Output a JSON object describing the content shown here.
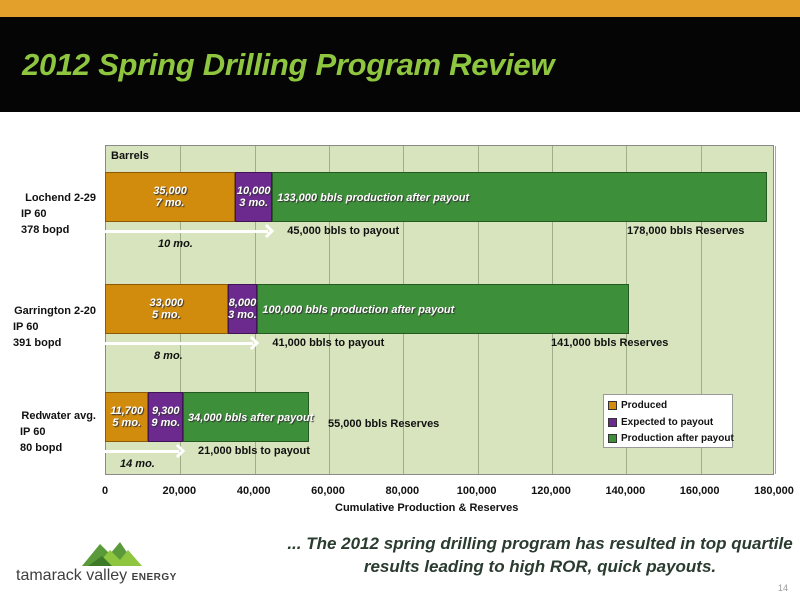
{
  "slide": {
    "title": "2012 Spring Drilling Program Review",
    "footer_text": "... The 2012 spring drilling program has resulted in top quartile results leading to high ROR, quick payouts.",
    "page_number": "14",
    "logo_name": "tamarack valley",
    "logo_suffix": "ENERGY"
  },
  "chart_data": {
    "type": "bar",
    "orientation": "horizontal",
    "stacked": true,
    "ylabel": "Barrels",
    "xlabel": "Cumulative Production & Reserves",
    "xlim": [
      0,
      180000
    ],
    "xticks": [
      "0",
      "20,000",
      "40,000",
      "60,000",
      "80,000",
      "100,000",
      "120,000",
      "140,000",
      "160,000",
      "180,000"
    ],
    "grid": true,
    "legend_position": "bottom-right",
    "colors": {
      "Produced": "#d18b0d",
      "Expected to payout": "#6c2a8e",
      "Production after payout": "#3e8f3a"
    },
    "series": [
      {
        "name": "Produced",
        "values": [
          35000,
          33000,
          11700
        ]
      },
      {
        "name": "Expected to payout",
        "values": [
          10000,
          8000,
          9300
        ]
      },
      {
        "name": "Production after payout",
        "values": [
          133000,
          100000,
          34000
        ]
      }
    ],
    "categories": [
      {
        "name": "Lochend 2-29",
        "ip": "IP 60",
        "rate": "378 bopd",
        "labels": [
          "35,000\n7 mo.",
          "10,000\n3 mo.",
          "133,000 bbls production after payout"
        ],
        "payout_months": "10 mo.",
        "payout_text": "45,000 bbls to payout",
        "payout_value": 45000,
        "reserves_text": "178,000 bbls Reserves"
      },
      {
        "name": "Garrington 2-20",
        "ip": "IP 60",
        "rate": "391 bopd",
        "labels": [
          "33,000\n5 mo.",
          "8,000\n3 mo.",
          "100,000 bbls production after payout"
        ],
        "payout_months": "8 mo.",
        "payout_text": "41,000 bbls to payout",
        "payout_value": 41000,
        "reserves_text": "141,000 bbls Reserves"
      },
      {
        "name": "Redwater avg.",
        "ip": "IP 60",
        "rate": "80 bopd",
        "labels": [
          "11,700\n5 mo.",
          "9,300\n9 mo.",
          "34,000 bbls after payout"
        ],
        "payout_months": "14 mo.",
        "payout_text": "21,000 bbls to payout",
        "payout_value": 21000,
        "reserves_text": "55,000 bbls Reserves"
      }
    ]
  }
}
